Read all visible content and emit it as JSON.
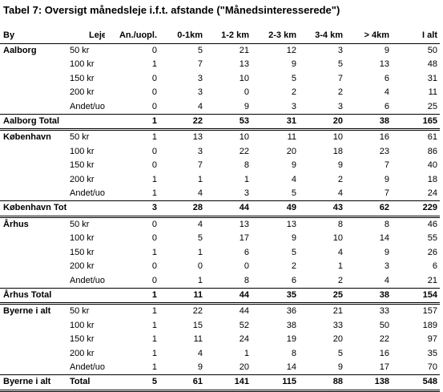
{
  "title": "Tabel 7: Oversigt månedsleje i.f.t. afstande (\"Månedsinteresserede\")",
  "headers": [
    "By",
    "Leje",
    "An./uopl.",
    "0-1km",
    "1-2 km",
    "2-3 km",
    "3-4 km",
    "> 4km",
    "I alt"
  ],
  "groups": [
    {
      "city": "Aalborg",
      "rows": [
        {
          "leje": "50 kr",
          "vals": [
            "0",
            "5",
            "21",
            "12",
            "3",
            "9",
            "50"
          ]
        },
        {
          "leje": "100 kr",
          "vals": [
            "1",
            "7",
            "13",
            "9",
            "5",
            "13",
            "48"
          ]
        },
        {
          "leje": "150 kr",
          "vals": [
            "0",
            "3",
            "10",
            "5",
            "7",
            "6",
            "31"
          ]
        },
        {
          "leje": "200 kr",
          "vals": [
            "0",
            "3",
            "0",
            "2",
            "2",
            "4",
            "11"
          ]
        },
        {
          "leje": "Andet/uo",
          "vals": [
            "0",
            "4",
            "9",
            "3",
            "3",
            "6",
            "25"
          ]
        }
      ],
      "total": {
        "label": "Aalborg Total",
        "label2": "",
        "vals": [
          "1",
          "22",
          "53",
          "31",
          "20",
          "38",
          "165"
        ]
      }
    },
    {
      "city": "København",
      "rows": [
        {
          "leje": "50 kr",
          "vals": [
            "1",
            "13",
            "10",
            "11",
            "10",
            "16",
            "61"
          ]
        },
        {
          "leje": "100 kr",
          "vals": [
            "0",
            "3",
            "22",
            "20",
            "18",
            "23",
            "86"
          ]
        },
        {
          "leje": "150 kr",
          "vals": [
            "0",
            "7",
            "8",
            "9",
            "9",
            "7",
            "40"
          ]
        },
        {
          "leje": "200 kr",
          "vals": [
            "1",
            "1",
            "1",
            "4",
            "2",
            "9",
            "18"
          ]
        },
        {
          "leje": "Andet/uo",
          "vals": [
            "1",
            "4",
            "3",
            "5",
            "4",
            "7",
            "24"
          ]
        }
      ],
      "total": {
        "label": "København Total",
        "label2": "",
        "vals": [
          "3",
          "28",
          "44",
          "49",
          "43",
          "62",
          "229"
        ]
      }
    },
    {
      "city": "Århus",
      "rows": [
        {
          "leje": "50 kr",
          "vals": [
            "0",
            "4",
            "13",
            "13",
            "8",
            "8",
            "46"
          ]
        },
        {
          "leje": "100 kr",
          "vals": [
            "0",
            "5",
            "17",
            "9",
            "10",
            "14",
            "55"
          ]
        },
        {
          "leje": "150 kr",
          "vals": [
            "1",
            "1",
            "6",
            "5",
            "4",
            "9",
            "26"
          ]
        },
        {
          "leje": "200 kr",
          "vals": [
            "0",
            "0",
            "0",
            "2",
            "1",
            "3",
            "6"
          ]
        },
        {
          "leje": "Andet/uo",
          "vals": [
            "0",
            "1",
            "8",
            "6",
            "2",
            "4",
            "21"
          ]
        }
      ],
      "total": {
        "label": "Århus Total",
        "label2": "",
        "vals": [
          "1",
          "11",
          "44",
          "35",
          "25",
          "38",
          "154"
        ]
      }
    },
    {
      "city": "Byerne i alt",
      "rows": [
        {
          "leje": "50 kr",
          "vals": [
            "1",
            "22",
            "44",
            "36",
            "21",
            "33",
            "157"
          ]
        },
        {
          "leje": "100 kr",
          "vals": [
            "1",
            "15",
            "52",
            "38",
            "33",
            "50",
            "189"
          ]
        },
        {
          "leje": "150 kr",
          "vals": [
            "1",
            "11",
            "24",
            "19",
            "20",
            "22",
            "97"
          ]
        },
        {
          "leje": "200 kr",
          "vals": [
            "1",
            "4",
            "1",
            "8",
            "5",
            "16",
            "35"
          ]
        },
        {
          "leje": "Andet/uo",
          "vals": [
            "1",
            "9",
            "20",
            "14",
            "9",
            "17",
            "70"
          ]
        }
      ],
      "total": {
        "label": "Byerne i alt",
        "label2": "Total",
        "vals": [
          "5",
          "61",
          "141",
          "115",
          "88",
          "138",
          "548"
        ]
      }
    }
  ]
}
